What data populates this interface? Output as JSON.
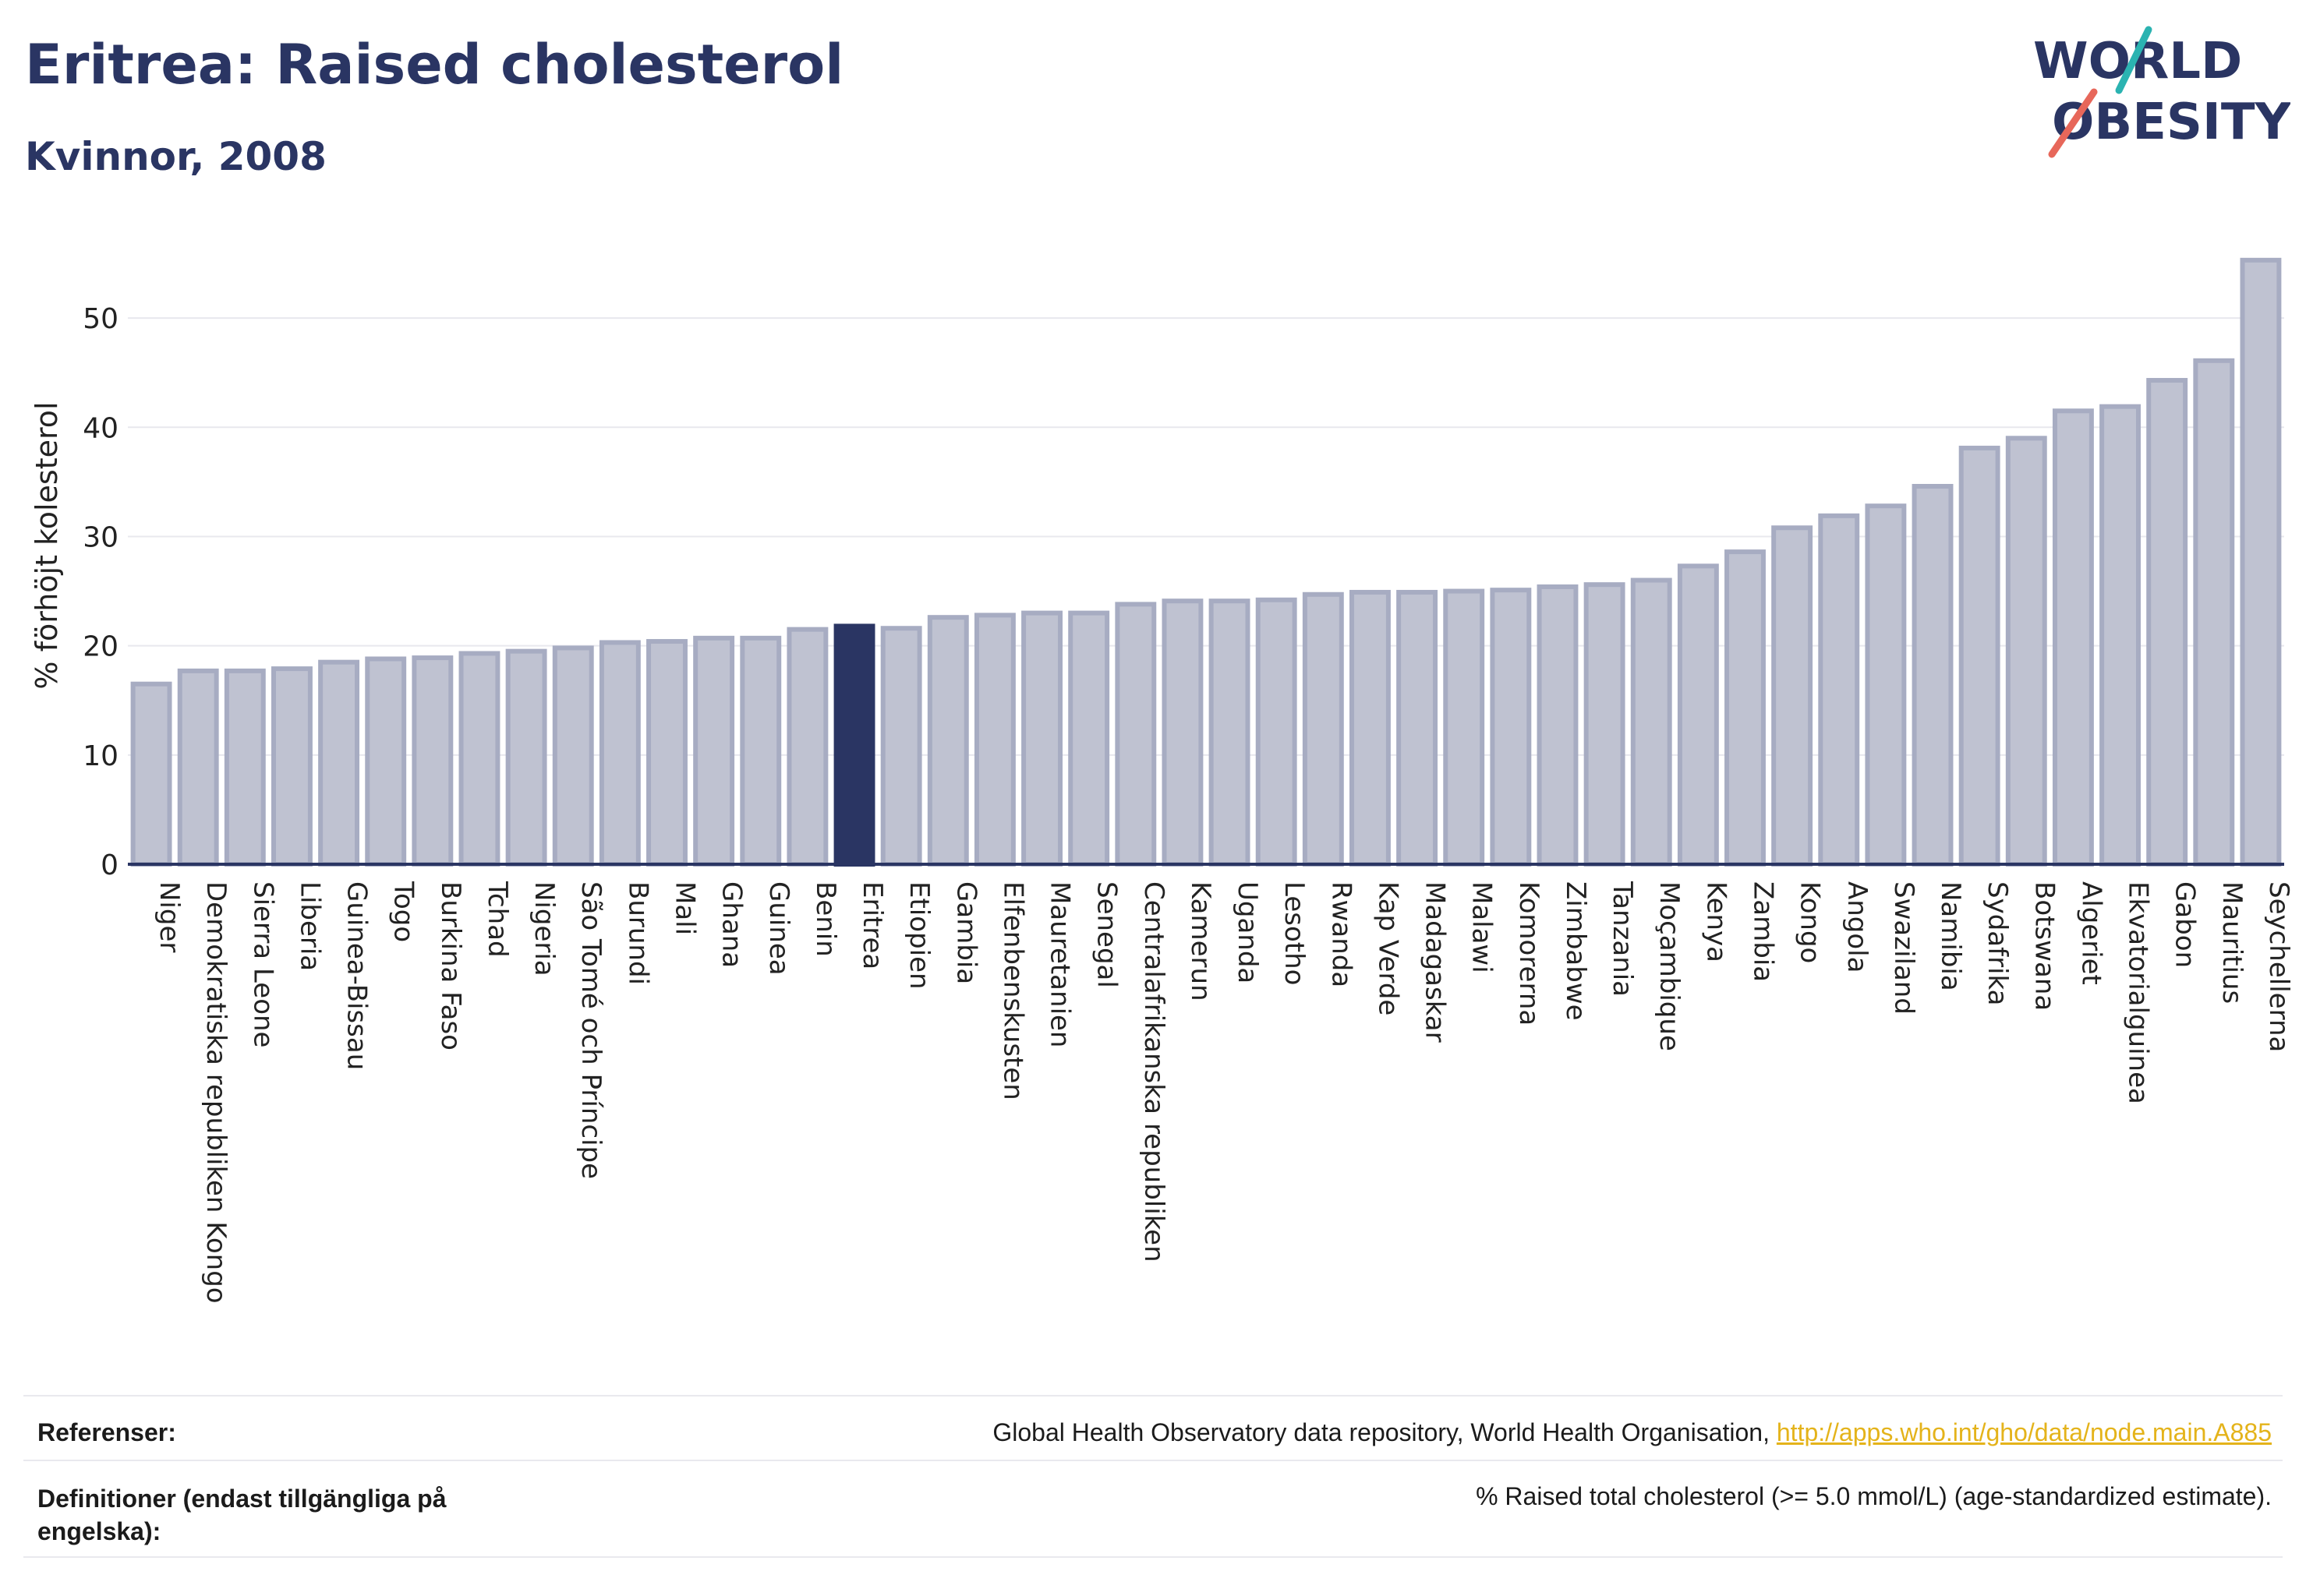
{
  "header": {
    "title": "Eritrea: Raised cholesterol",
    "subtitle": "Kvinnor, 2008"
  },
  "logo": {
    "line1": "WORLD",
    "line2": "OBESITY",
    "colors": {
      "text": "#2a3563",
      "accent_teal": "#2bb3b1",
      "accent_coral": "#e7675a"
    }
  },
  "colors": {
    "bar_fill": "#bfc2d1",
    "bar_stroke": "#a7acc2",
    "highlight": "#2a3563",
    "grid": "#e8e8ee",
    "axis": "#2a3563"
  },
  "chart_data": {
    "type": "bar",
    "title": "Eritrea: Raised cholesterol",
    "subtitle": "Kvinnor, 2008",
    "xlabel": "",
    "ylabel": "% förhöjt kolesterol",
    "ylim": [
      0,
      57
    ],
    "yticks": [
      0,
      10,
      20,
      30,
      40,
      50
    ],
    "grid": true,
    "highlight": "Eritrea",
    "categories": [
      "Niger",
      "Demokratiska republiken Kongo",
      "Sierra Leone",
      "Liberia",
      "Guinea-Bissau",
      "Togo",
      "Burkina Faso",
      "Tchad",
      "Nigeria",
      "São Tomé och Príncipe",
      "Burundi",
      "Mali",
      "Ghana",
      "Guinea",
      "Benin",
      "Eritrea",
      "Etiopien",
      "Gambia",
      "Elfenbenskusten",
      "Mauretanien",
      "Senegal",
      "Centralafrikanska republiken",
      "Kamerun",
      "Uganda",
      "Lesotho",
      "Rwanda",
      "Kap Verde",
      "Madagaskar",
      "Malawi",
      "Komorerna",
      "Zimbabwe",
      "Tanzania",
      "Moçambique",
      "Kenya",
      "Zambia",
      "Kongo",
      "Angola",
      "Swaziland",
      "Namibia",
      "Sydafrika",
      "Botswana",
      "Algeriet",
      "Ekvatorialguinea",
      "Gabon",
      "Mauritius",
      "Seychellerna"
    ],
    "values": [
      16.5,
      17.7,
      17.7,
      17.9,
      18.5,
      18.8,
      18.9,
      19.3,
      19.5,
      19.8,
      20.3,
      20.4,
      20.7,
      20.7,
      21.5,
      21.8,
      21.6,
      22.6,
      22.8,
      23.0,
      23.0,
      23.8,
      24.1,
      24.1,
      24.2,
      24.7,
      24.9,
      24.9,
      25.0,
      25.1,
      25.4,
      25.6,
      26.0,
      27.3,
      28.6,
      30.8,
      31.9,
      32.8,
      34.6,
      38.1,
      39.0,
      41.5,
      41.9,
      44.3,
      46.1,
      55.3
    ]
  },
  "footer": {
    "references_label": "Referenser:",
    "references_text": "Global Health Observatory data repository, World Health Organisation, ",
    "references_link": "http://apps.who.int/gho/data/node.main.A885",
    "definitions_label_1": "Definitioner (endast tillgängliga på",
    "definitions_label_2": "engelska):",
    "definitions_text": "% Raised total cholesterol (>= 5.0 mmol/L) (age-standardized estimate)."
  }
}
